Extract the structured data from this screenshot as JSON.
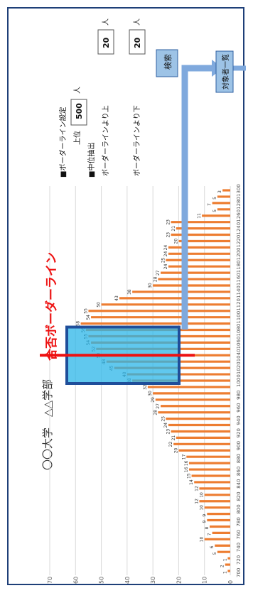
{
  "page": {
    "title": "〇〇大学　△△学部",
    "pass_line_label": "合否ボーダーライン",
    "border_section": {
      "heading": "■ボーダーライン設定",
      "top_label": "上位",
      "top_value": "500",
      "top_unit": "人"
    },
    "middle_section": {
      "heading": "■中位抽出",
      "above_label": "ボーダーラインより上",
      "above_value": "20",
      "above_unit": "人",
      "below_label": "ボーダーラインより下",
      "below_value": "20",
      "below_unit": "人"
    },
    "search_button": "検索",
    "list_button": "対象者一覧",
    "colors": {
      "bar": "#ed7d31",
      "highlight_fill": "#2bb6e8",
      "highlight_border": "#1f4e9a",
      "border_line": "#ee1111",
      "arrow": "#7fa9dd",
      "frame": "#1e3f78",
      "button_fill": "#9dc3e6"
    }
  },
  "chart_data": {
    "type": "bar",
    "orientation": "horizontal",
    "categories": [
      "700",
      "710",
      "720",
      "730",
      "740",
      "750",
      "760",
      "770",
      "780",
      "790",
      "800",
      "810",
      "820",
      "830",
      "840",
      "850",
      "860",
      "870",
      "880",
      "890",
      "900",
      "910",
      "920",
      "930",
      "940",
      "950",
      "960",
      "970",
      "980",
      "990",
      "1000",
      "1010",
      "1020",
      "1030",
      "1040",
      "1050",
      "1060",
      "1070",
      "1080",
      "1090",
      "1100",
      "1110",
      "1120",
      "1130",
      "1140",
      "1150",
      "1160",
      "1170",
      "1180",
      "1190",
      "1200",
      "1210",
      "1220",
      "1230",
      "1240",
      "1250",
      "1260",
      "1270",
      "1280",
      "1290",
      "1300"
    ],
    "tick_labels": [
      "700",
      "720",
      "740",
      "760",
      "780",
      "800",
      "820",
      "840",
      "860",
      "880",
      "900",
      "920",
      "940",
      "960",
      "980",
      "1000",
      "1020",
      "1040",
      "1060",
      "1080",
      "1100",
      "1120",
      "1140",
      "1160",
      "1180",
      "1200",
      "1220",
      "1240",
      "1260",
      "1280",
      "1300"
    ],
    "values": [
      1,
      2,
      1,
      5,
      6,
      10,
      7,
      8,
      9,
      9,
      10,
      12,
      10,
      12,
      14,
      15,
      16,
      16,
      17,
      20,
      22,
      21,
      23,
      24,
      25,
      28,
      27,
      29,
      30,
      32,
      38,
      40,
      45,
      48,
      50,
      52,
      54,
      55,
      56,
      58,
      54,
      55,
      50,
      43,
      38,
      30,
      28,
      27,
      24,
      25,
      24,
      24,
      20,
      23,
      21,
      23,
      11,
      5,
      7,
      5,
      3
    ],
    "data_labels": [
      "1",
      "2",
      "1",
      "5",
      "6",
      "10",
      "7",
      "8",
      "9",
      "9",
      "10",
      "12",
      "10",
      "12",
      "14",
      "15",
      "16",
      "16",
      "17",
      "20",
      "22",
      "21",
      "23",
      "24",
      "25",
      "28",
      "27",
      "29",
      "30",
      "32",
      "38",
      "40",
      "45",
      "48",
      "50",
      "52",
      "54",
      "55",
      "56",
      "58",
      "54",
      "55",
      "50",
      "43",
      "38",
      "30",
      "28",
      "27",
      "24",
      "25",
      "24",
      "24",
      "20",
      "23",
      "21",
      "23",
      "11",
      "5",
      "7",
      "5",
      "3"
    ],
    "ylim": [
      0,
      70
    ],
    "yticks": [
      "0",
      "10",
      "20",
      "30",
      "40",
      "50",
      "60",
      "70"
    ],
    "grid": true,
    "highlight_range": [
      "1000",
      "1080"
    ],
    "border_line_at": "1040"
  }
}
